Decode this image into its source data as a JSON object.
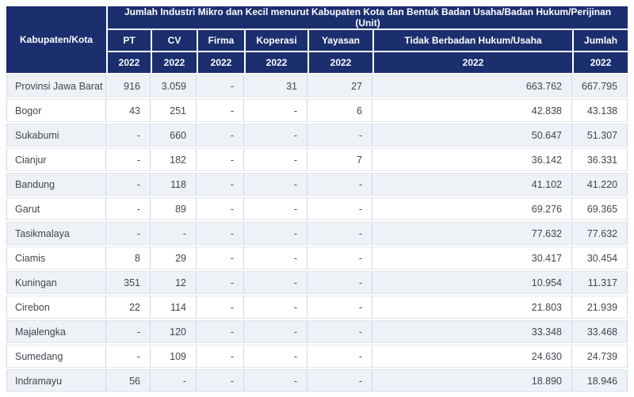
{
  "table": {
    "corner_header": "Kabupaten/Kota",
    "title": "Jumlah Industri Mikro dan Kecil menurut Kabupaten Kota dan Bentuk Badan Usaha/Badan Hukum/Perijinan (Unit)",
    "columns": [
      "PT",
      "CV",
      "Firma",
      "Koperasi",
      "Yayasan",
      "Tidak Berbadan Hukum/Usaha",
      "Jumlah"
    ],
    "years": [
      "2022",
      "2022",
      "2022",
      "2022",
      "2022",
      "2022",
      "2022"
    ],
    "rows": [
      {
        "region": "Provinsi Jawa Barat",
        "values": [
          "916",
          "3.059",
          "-",
          "31",
          "27",
          "663.762",
          "667.795"
        ]
      },
      {
        "region": "Bogor",
        "values": [
          "43",
          "251",
          "-",
          "-",
          "6",
          "42.838",
          "43.138"
        ]
      },
      {
        "region": "Sukabumi",
        "values": [
          "-",
          "660",
          "-",
          "-",
          "-",
          "50.647",
          "51.307"
        ]
      },
      {
        "region": "Cianjur",
        "values": [
          "-",
          "182",
          "-",
          "-",
          "7",
          "36.142",
          "36.331"
        ]
      },
      {
        "region": "Bandung",
        "values": [
          "-",
          "118",
          "-",
          "-",
          "-",
          "41.102",
          "41.220"
        ]
      },
      {
        "region": "Garut",
        "values": [
          "-",
          "89",
          "-",
          "-",
          "-",
          "69.276",
          "69.365"
        ]
      },
      {
        "region": "Tasikmalaya",
        "values": [
          "-",
          "-",
          "-",
          "-",
          "-",
          "77.632",
          "77.632"
        ]
      },
      {
        "region": "Ciamis",
        "values": [
          "8",
          "29",
          "-",
          "-",
          "-",
          "30.417",
          "30.454"
        ]
      },
      {
        "region": "Kuningan",
        "values": [
          "351",
          "12",
          "-",
          "-",
          "-",
          "10.954",
          "11.317"
        ]
      },
      {
        "region": "Cirebon",
        "values": [
          "22",
          "114",
          "-",
          "-",
          "-",
          "21.803",
          "21.939"
        ]
      },
      {
        "region": "Majalengka",
        "values": [
          "-",
          "120",
          "-",
          "-",
          "-",
          "33.348",
          "33.468"
        ]
      },
      {
        "region": "Sumedang",
        "values": [
          "-",
          "109",
          "-",
          "-",
          "-",
          "24.630",
          "24.739"
        ]
      },
      {
        "region": "Indramayu",
        "values": [
          "56",
          "-",
          "-",
          "-",
          "-",
          "18.890",
          "18.946"
        ]
      }
    ]
  },
  "colors": {
    "header_bg": "#1b2e6e",
    "header_text": "#ffffff",
    "row_bg": "#ffffff",
    "row_alt_bg": "#eef1f6",
    "cell_border": "#d2d7e0",
    "body_text": "#42464e"
  }
}
